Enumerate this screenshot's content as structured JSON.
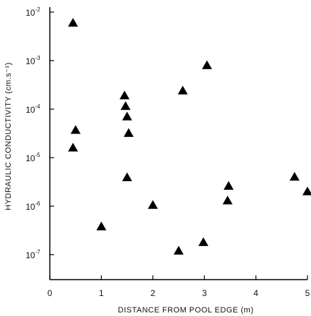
{
  "chart_data": {
    "type": "scatter",
    "title": "",
    "xlabel": "DISTANCE FROM POOL EDGE (m)",
    "ylabel": "HYDRAULIC CONDUCTIVITY (cm.s⁻¹)",
    "xlim": [
      0,
      5
    ],
    "ylim": [
      1e-07,
      0.01
    ],
    "yscale": "log",
    "grid": false,
    "legend": "none",
    "marker": "triangle",
    "marker_color": "#000000",
    "x_ticks": [
      {
        "value": 0,
        "label": "0"
      },
      {
        "value": 1,
        "label": "1"
      },
      {
        "value": 2,
        "label": "2"
      },
      {
        "value": 3,
        "label": "3"
      },
      {
        "value": 4,
        "label": "4"
      },
      {
        "value": 5,
        "label": "5"
      }
    ],
    "y_ticks": [
      {
        "value": 1e-07,
        "base": "10",
        "exp": "-7"
      },
      {
        "value": 1e-06,
        "base": "10",
        "exp": "-6"
      },
      {
        "value": 1e-05,
        "base": "10",
        "exp": "-5"
      },
      {
        "value": 0.0001,
        "base": "10",
        "exp": "-4"
      },
      {
        "value": 0.001,
        "base": "10",
        "exp": "-3"
      },
      {
        "value": 0.01,
        "base": "10",
        "exp": "-2"
      }
    ],
    "points": [
      {
        "x": 0.45,
        "y": 0.006
      },
      {
        "x": 0.5,
        "y": 3.7e-05
      },
      {
        "x": 0.45,
        "y": 1.6e-05
      },
      {
        "x": 1.0,
        "y": 3.8e-07
      },
      {
        "x": 1.45,
        "y": 0.00019
      },
      {
        "x": 1.47,
        "y": 0.000115
      },
      {
        "x": 1.5,
        "y": 7e-05
      },
      {
        "x": 1.53,
        "y": 3.2e-05
      },
      {
        "x": 1.5,
        "y": 3.9e-06
      },
      {
        "x": 2.0,
        "y": 1.05e-06
      },
      {
        "x": 2.5,
        "y": 1.2e-07
      },
      {
        "x": 2.58,
        "y": 0.00024
      },
      {
        "x": 2.98,
        "y": 1.8e-07
      },
      {
        "x": 3.05,
        "y": 0.0008
      },
      {
        "x": 3.47,
        "y": 2.6e-06
      },
      {
        "x": 3.45,
        "y": 1.3e-06
      },
      {
        "x": 4.75,
        "y": 4e-06
      },
      {
        "x": 5.0,
        "y": 2e-06
      }
    ]
  }
}
